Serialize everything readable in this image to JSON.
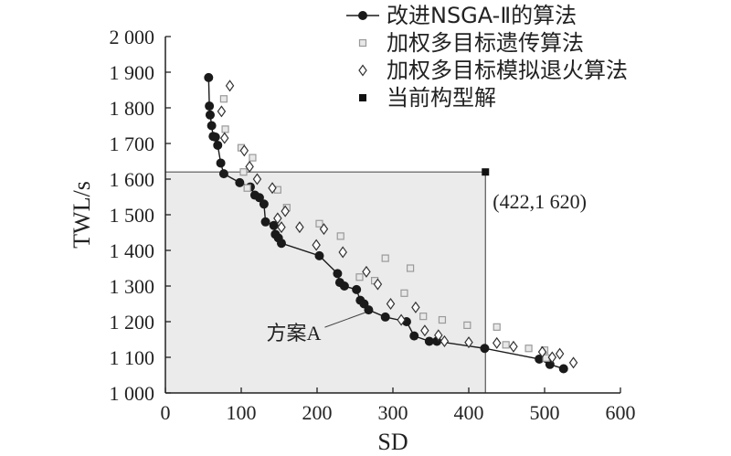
{
  "chart_data": {
    "type": "scatter",
    "xlabel": "SD",
    "ylabel": "TWL/s",
    "xlim": [
      0,
      600
    ],
    "ylim": [
      1000,
      2000
    ],
    "x_ticks": [
      0,
      100,
      200,
      300,
      400,
      500,
      600
    ],
    "x_tick_labels": [
      "0",
      "100",
      "200",
      "300",
      "400",
      "500",
      "600"
    ],
    "y_ticks": [
      1000,
      1100,
      1200,
      1300,
      1400,
      1500,
      1600,
      1700,
      1800,
      1900,
      2000
    ],
    "y_tick_labels": [
      "1 000",
      "1 100",
      "1 200",
      "1 300",
      "1 400",
      "1 500",
      "1 600",
      "1 700",
      "1 800",
      "1 900",
      "2 000"
    ],
    "grid": false,
    "legend_position": "top-right",
    "series": [
      {
        "name": "改进NSGA-Ⅱ的算法",
        "marker": "filled-circle-line",
        "color": "#1a1a1a",
        "points": [
          [
            57,
            1885
          ],
          [
            58,
            1805
          ],
          [
            59,
            1780
          ],
          [
            61,
            1750
          ],
          [
            63,
            1720
          ],
          [
            66,
            1718
          ],
          [
            69,
            1695
          ],
          [
            73,
            1645
          ],
          [
            77,
            1615
          ],
          [
            98,
            1590
          ],
          [
            112,
            1578
          ],
          [
            118,
            1555
          ],
          [
            124,
            1548
          ],
          [
            130,
            1530
          ],
          [
            132,
            1480
          ],
          [
            143,
            1470
          ],
          [
            145,
            1445
          ],
          [
            149,
            1435
          ],
          [
            153,
            1420
          ],
          [
            203,
            1385
          ],
          [
            227,
            1335
          ],
          [
            230,
            1310
          ],
          [
            236,
            1300
          ],
          [
            252,
            1290
          ],
          [
            257,
            1260
          ],
          [
            262,
            1250
          ],
          [
            268,
            1233
          ],
          [
            290,
            1213
          ],
          [
            318,
            1200
          ],
          [
            328,
            1160
          ],
          [
            348,
            1145
          ],
          [
            358,
            1145
          ],
          [
            421,
            1125
          ],
          [
            493,
            1095
          ],
          [
            507,
            1080
          ],
          [
            525,
            1068
          ]
        ]
      },
      {
        "name": "加权多目标遗传算法",
        "marker": "open-square",
        "color": "#9a9a9a",
        "points": [
          [
            77,
            1825
          ],
          [
            79,
            1740
          ],
          [
            100,
            1688
          ],
          [
            103,
            1620
          ],
          [
            108,
            1575
          ],
          [
            115,
            1660
          ],
          [
            148,
            1570
          ],
          [
            160,
            1520
          ],
          [
            203,
            1475
          ],
          [
            231,
            1440
          ],
          [
            256,
            1325
          ],
          [
            276,
            1315
          ],
          [
            290,
            1378
          ],
          [
            315,
            1280
          ],
          [
            323,
            1350
          ],
          [
            340,
            1215
          ],
          [
            365,
            1205
          ],
          [
            398,
            1190
          ],
          [
            437,
            1185
          ],
          [
            449,
            1135
          ],
          [
            479,
            1125
          ],
          [
            500,
            1120
          ],
          [
            502,
            1098
          ]
        ]
      },
      {
        "name": "加权多目标模拟退火算法",
        "marker": "open-diamond",
        "color": "#333333",
        "points": [
          [
            85,
            1862
          ],
          [
            74,
            1790
          ],
          [
            78,
            1715
          ],
          [
            104,
            1680
          ],
          [
            111,
            1635
          ],
          [
            121,
            1600
          ],
          [
            141,
            1575
          ],
          [
            148,
            1490
          ],
          [
            153,
            1465
          ],
          [
            158,
            1510
          ],
          [
            177,
            1465
          ],
          [
            199,
            1415
          ],
          [
            209,
            1460
          ],
          [
            234,
            1395
          ],
          [
            265,
            1340
          ],
          [
            280,
            1305
          ],
          [
            297,
            1250
          ],
          [
            311,
            1205
          ],
          [
            330,
            1240
          ],
          [
            342,
            1175
          ],
          [
            360,
            1162
          ],
          [
            368,
            1145
          ],
          [
            400,
            1142
          ],
          [
            437,
            1140
          ],
          [
            459,
            1130
          ],
          [
            497,
            1115
          ],
          [
            510,
            1100
          ],
          [
            520,
            1110
          ],
          [
            538,
            1085
          ]
        ]
      },
      {
        "name": "当前构型解",
        "marker": "filled-square",
        "color": "#111111",
        "points": [
          [
            422,
            1620
          ]
        ]
      }
    ],
    "annotations": [
      {
        "text": "(422,1 620)",
        "x": 422,
        "y": 1620
      },
      {
        "text": "方案A",
        "x": 268,
        "y": 1233
      }
    ],
    "reference_lines": [
      {
        "type": "horizontal",
        "y": 1620,
        "x_from": 0,
        "x_to": 422
      },
      {
        "type": "vertical",
        "x": 422,
        "y_from": 1000,
        "y_to": 1620
      }
    ],
    "shaded_region": {
      "x": [
        0,
        422
      ],
      "y": [
        1000,
        1620
      ],
      "color": "#ebebeb"
    }
  }
}
